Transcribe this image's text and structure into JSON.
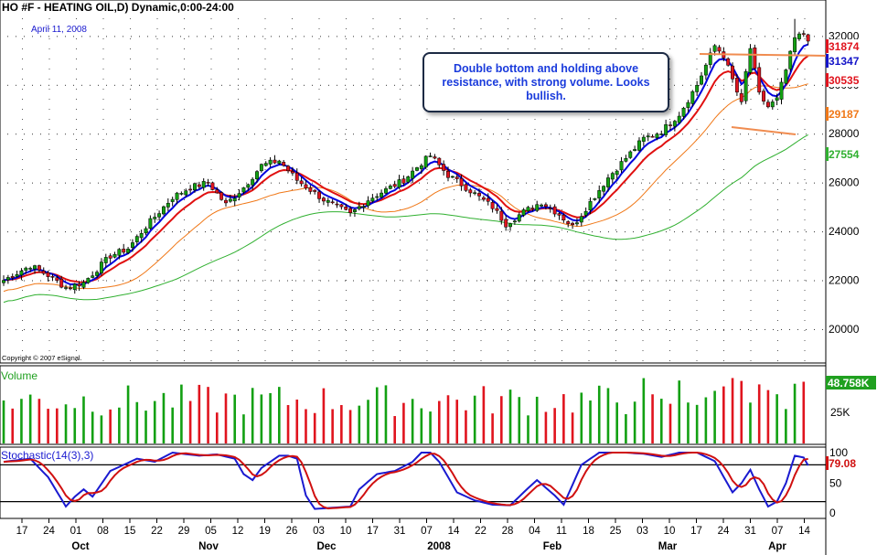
{
  "chart_data": {
    "type": "candlestick",
    "title": "HO #F - HEATING OIL,D) Dynamic,0:00-24:00",
    "date_label": "April 11, 2008",
    "copyright": "Copyright © 2007 eSignal.",
    "annotation": "Double bottom and holding above resistance, with strong volume. Looks bullish.",
    "colors": {
      "up": "#12a012",
      "down": "#e0141e",
      "ma_fast": "#0000dd",
      "ma_mid": "#e01010",
      "ma_slow": "#f07818",
      "ma_long": "#30b030",
      "stoch_k": "#1a1ad0",
      "stoch_d": "#d01010",
      "trend": "#f08c50"
    },
    "price_axis": {
      "min": 18800,
      "max": 32800,
      "ticks": [
        "32000",
        "30000",
        "28000",
        "26000",
        "24000",
        "22000",
        "20000"
      ]
    },
    "price_badges": [
      {
        "value": "31874",
        "color": "#e0141e"
      },
      {
        "value": "31347",
        "color": "#1414c8"
      },
      {
        "value": "30535",
        "color": "#e0141e"
      },
      {
        "value": "29187",
        "color": "#f07818"
      },
      {
        "value": "27554",
        "color": "#30b030"
      }
    ],
    "x_ticks": [
      "17",
      "24",
      "01",
      "08",
      "15",
      "22",
      "29",
      "05",
      "12",
      "19",
      "26",
      "03",
      "10",
      "17",
      "31",
      "07",
      "14",
      "22",
      "28",
      "04",
      "11",
      "18",
      "25",
      "03",
      "10",
      "17",
      "24",
      "31",
      "07",
      "14"
    ],
    "month_labels": [
      "Oct",
      "Nov",
      "Dec",
      "2008",
      "Feb",
      "Mar",
      "Apr"
    ],
    "price_anchors": [
      [
        0,
        22000
      ],
      [
        6,
        22600
      ],
      [
        10,
        22200
      ],
      [
        14,
        21700
      ],
      [
        18,
        21900
      ],
      [
        24,
        23000
      ],
      [
        28,
        23300
      ],
      [
        32,
        24200
      ],
      [
        38,
        25400
      ],
      [
        42,
        25800
      ],
      [
        46,
        26000
      ],
      [
        50,
        25100
      ],
      [
        54,
        25800
      ],
      [
        58,
        26700
      ],
      [
        62,
        26900
      ],
      [
        66,
        26100
      ],
      [
        72,
        25300
      ],
      [
        78,
        24700
      ],
      [
        82,
        25300
      ],
      [
        86,
        25700
      ],
      [
        90,
        26100
      ],
      [
        94,
        26800
      ],
      [
        96,
        27100
      ],
      [
        100,
        26300
      ],
      [
        104,
        25800
      ],
      [
        110,
        25000
      ],
      [
        113,
        24300
      ],
      [
        117,
        24800
      ],
      [
        121,
        25200
      ],
      [
        125,
        24700
      ],
      [
        128,
        24200
      ],
      [
        132,
        25200
      ],
      [
        136,
        26200
      ],
      [
        140,
        27000
      ],
      [
        144,
        27800
      ],
      [
        148,
        28100
      ],
      [
        152,
        28800
      ],
      [
        156,
        30000
      ],
      [
        158,
        30800
      ],
      [
        160,
        31600
      ],
      [
        162,
        31200
      ],
      [
        164,
        30200
      ],
      [
        166,
        29200
      ],
      [
        167,
        30500
      ],
      [
        168,
        31500
      ],
      [
        170,
        29600
      ],
      [
        172,
        29100
      ],
      [
        174,
        29400
      ],
      [
        176,
        30600
      ],
      [
        178,
        31900
      ],
      [
        180,
        32100
      ],
      [
        181,
        31900
      ]
    ],
    "volume": {
      "label": "Volume",
      "current": "48.758K",
      "ticks": [
        "25K"
      ],
      "max": 60
    },
    "stochastic": {
      "label": "Stochastic(14(3),3)",
      "current": "79.08",
      "ticks": [
        "100",
        "50",
        "0"
      ],
      "overbought": 80,
      "oversold": 20
    },
    "stoch_anchors": [
      [
        0,
        85
      ],
      [
        6,
        90
      ],
      [
        10,
        60
      ],
      [
        14,
        12
      ],
      [
        16,
        28
      ],
      [
        18,
        40
      ],
      [
        20,
        28
      ],
      [
        24,
        70
      ],
      [
        30,
        90
      ],
      [
        34,
        85
      ],
      [
        38,
        100
      ],
      [
        44,
        95
      ],
      [
        48,
        97
      ],
      [
        52,
        90
      ],
      [
        54,
        65
      ],
      [
        56,
        55
      ],
      [
        58,
        75
      ],
      [
        62,
        95
      ],
      [
        64,
        95
      ],
      [
        66,
        90
      ],
      [
        68,
        30
      ],
      [
        70,
        8
      ],
      [
        74,
        10
      ],
      [
        78,
        12
      ],
      [
        80,
        40
      ],
      [
        84,
        65
      ],
      [
        88,
        70
      ],
      [
        92,
        85
      ],
      [
        94,
        100
      ],
      [
        96,
        100
      ],
      [
        98,
        85
      ],
      [
        102,
        35
      ],
      [
        106,
        22
      ],
      [
        110,
        15
      ],
      [
        114,
        14
      ],
      [
        118,
        42
      ],
      [
        120,
        55
      ],
      [
        124,
        30
      ],
      [
        126,
        15
      ],
      [
        130,
        80
      ],
      [
        134,
        100
      ],
      [
        140,
        100
      ],
      [
        144,
        98
      ],
      [
        148,
        93
      ],
      [
        152,
        100
      ],
      [
        156,
        100
      ],
      [
        160,
        86
      ],
      [
        164,
        35
      ],
      [
        166,
        50
      ],
      [
        168,
        72
      ],
      [
        170,
        40
      ],
      [
        172,
        12
      ],
      [
        174,
        20
      ],
      [
        176,
        50
      ],
      [
        178,
        95
      ],
      [
        180,
        92
      ],
      [
        181,
        79
      ]
    ]
  }
}
